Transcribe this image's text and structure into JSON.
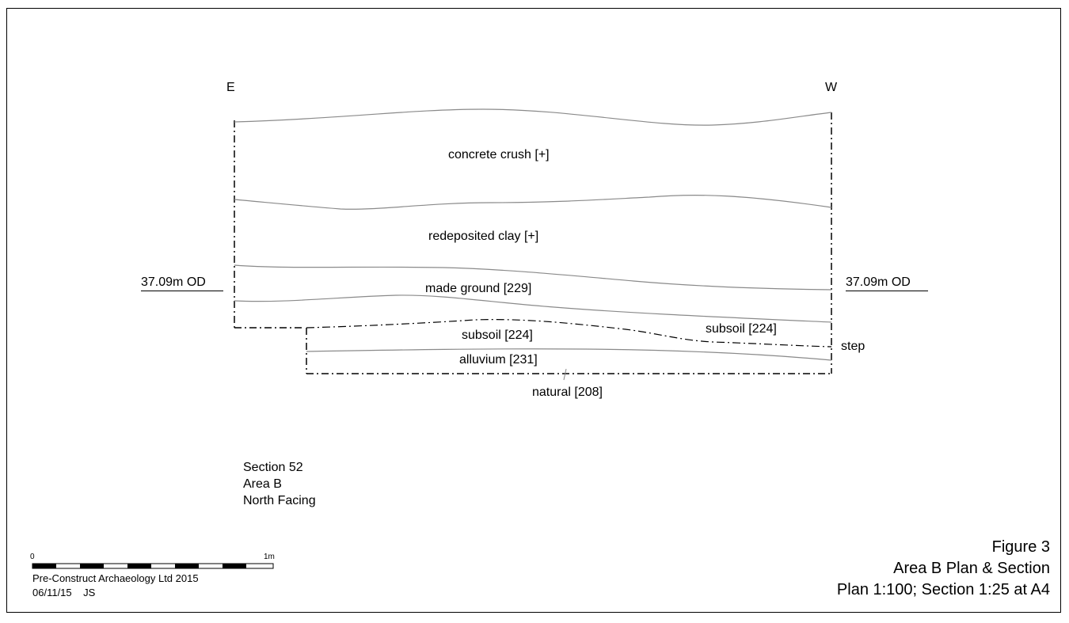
{
  "orientation": {
    "left": "E",
    "right": "W"
  },
  "datum_left": "37.09m OD",
  "datum_right": "37.09m OD",
  "layers": {
    "concrete": "concrete crush [+]",
    "redeposited": "redeposited clay [+]",
    "made_ground": "made ground [229]",
    "subsoil_left": "subsoil [224]",
    "subsoil_right": "subsoil [224]",
    "alluvium": "alluvium [231]",
    "natural": "natural [208]",
    "step": "step"
  },
  "section_info": {
    "line1": "Section 52",
    "line2": "Area B",
    "line3": "North Facing"
  },
  "scale_bar": {
    "start": "0",
    "end": "1m"
  },
  "credit": {
    "line1": "Pre-Construct Archaeology Ltd 2015",
    "line2": "06/11/15    JS"
  },
  "figure": {
    "number": "Figure 3",
    "title": "Area B Plan & Section",
    "scale": "Plan 1:100; Section 1:25 at A4"
  },
  "colors": {
    "line": "#000000",
    "horizon": "#8a8a8a"
  }
}
